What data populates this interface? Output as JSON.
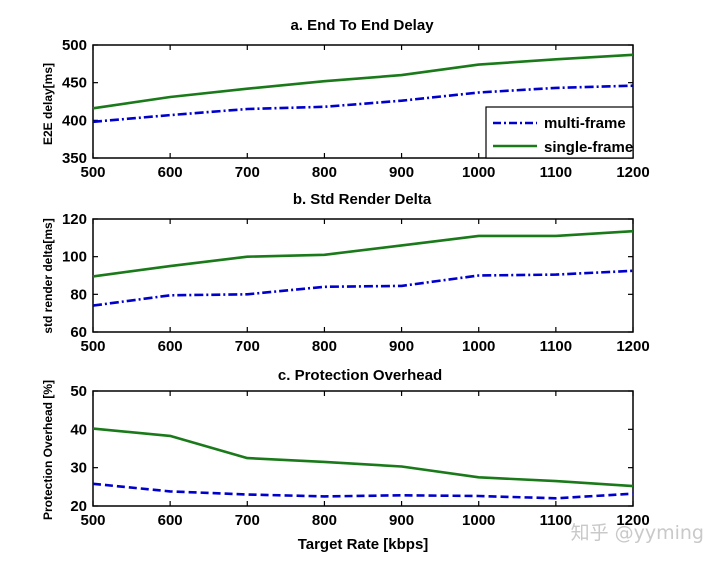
{
  "chart_data": [
    {
      "type": "line",
      "title": "a. End To End Delay",
      "ylabel": "E2E delay[ms]",
      "xlabel": "",
      "x": [
        500,
        600,
        700,
        800,
        900,
        1000,
        1100,
        1200
      ],
      "xticks": [
        "500",
        "600",
        "700",
        "800",
        "900",
        "1000",
        "1100",
        "1200"
      ],
      "xlim": [
        500,
        1200
      ],
      "ylim": [
        350,
        500
      ],
      "yticks": [
        "350",
        "400",
        "450",
        "500"
      ],
      "legend": "bottom-right",
      "series": [
        {
          "name": "multi-frame",
          "color": "#0000cc",
          "style": "dash-dot",
          "values": [
            398,
            407,
            415,
            418,
            426,
            437,
            443,
            446
          ]
        },
        {
          "name": "single-frame",
          "color": "#1a7a1a",
          "style": "solid",
          "values": [
            416,
            431,
            442,
            452,
            460,
            474,
            481,
            487
          ]
        }
      ]
    },
    {
      "type": "line",
      "title": "b. Std Render Delta",
      "ylabel": "std render delta[ms]",
      "xlabel": "",
      "x": [
        500,
        600,
        700,
        800,
        900,
        1000,
        1100,
        1200
      ],
      "xticks": [
        "500",
        "600",
        "700",
        "800",
        "900",
        "1000",
        "1100",
        "1200"
      ],
      "xlim": [
        500,
        1200
      ],
      "ylim": [
        60,
        120
      ],
      "yticks": [
        "60",
        "80",
        "100",
        "120"
      ],
      "series": [
        {
          "name": "multi-frame",
          "color": "#0000cc",
          "style": "dash-dot",
          "values": [
            74,
            79.5,
            80,
            84,
            84.5,
            90,
            90.5,
            92.5
          ]
        },
        {
          "name": "single-frame",
          "color": "#1a7a1a",
          "style": "solid",
          "values": [
            89.5,
            95,
            100,
            101,
            106,
            111,
            111,
            113.5
          ]
        }
      ]
    },
    {
      "type": "line",
      "title": "c. Protection Overhead",
      "ylabel": "Protection Overhead [%]",
      "xlabel": "Target Rate [kbps]",
      "x": [
        500,
        600,
        700,
        800,
        900,
        1000,
        1100,
        1200
      ],
      "xticks": [
        "500",
        "600",
        "700",
        "800",
        "900",
        "1000",
        "1100",
        "1200"
      ],
      "xlim": [
        500,
        1200
      ],
      "ylim": [
        20,
        50
      ],
      "yticks": [
        "20",
        "30",
        "40",
        "50"
      ],
      "series": [
        {
          "name": "multi-frame",
          "color": "#0000cc",
          "style": "dashed",
          "values": [
            25.8,
            23.8,
            23,
            22.5,
            22.8,
            22.6,
            22,
            23.2
          ]
        },
        {
          "name": "single-frame",
          "color": "#1a7a1a",
          "style": "solid",
          "values": [
            40.2,
            38.3,
            32.5,
            31.5,
            30.3,
            27.5,
            26.5,
            25.2
          ]
        }
      ]
    }
  ],
  "watermark": "知乎 @yyming"
}
